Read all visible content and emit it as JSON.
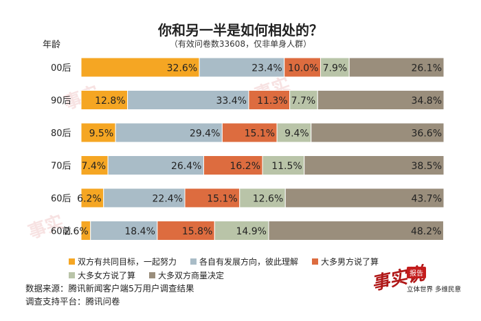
{
  "title": "你和另一半是如何相处的？",
  "subtitle": "（有效问卷数33608，仅非单身人群）",
  "corner_label": "年龄",
  "colors": [
    "#f5a623",
    "#a9bcc7",
    "#dd6c3f",
    "#b9c4a8",
    "#9a8e7c"
  ],
  "legend": {
    "row1": [
      "双方有共同目标，一起努力",
      "各自有发展方向，彼此理解",
      "大多男方说了算"
    ],
    "row2": [
      "大多女方说了算",
      "大多双方商量决定"
    ]
  },
  "source": {
    "line1": "数据来源：腾讯新闻客户端5万用户调查结果",
    "line2": "调查支持平台：腾讯问卷"
  },
  "logo": {
    "mark": "事实说",
    "badge": "报告",
    "tagline": "立体世界 多维民意"
  },
  "chart_data": {
    "type": "bar",
    "orientation": "horizontal",
    "stacked": true,
    "title": "你和另一半是如何相处的？",
    "subtitle": "（有效问卷数33608，仅非单身人群）",
    "categories": [
      "00后",
      "90后",
      "80后",
      "70后",
      "60后",
      "60前"
    ],
    "xlim": [
      0,
      100
    ],
    "grid": false,
    "legend_position": "bottom",
    "series": [
      {
        "name": "双方有共同目标，一起努力",
        "values": [
          32.6,
          12.8,
          9.5,
          7.4,
          6.2,
          2.6
        ]
      },
      {
        "name": "各自有发展方向，彼此理解",
        "values": [
          23.4,
          33.4,
          29.4,
          26.4,
          22.4,
          18.4
        ]
      },
      {
        "name": "大多男方说了算",
        "values": [
          10.0,
          11.3,
          15.1,
          16.2,
          15.1,
          15.8
        ]
      },
      {
        "name": "大多女方说了算",
        "values": [
          7.9,
          7.7,
          9.4,
          11.5,
          12.6,
          14.9
        ]
      },
      {
        "name": "大多双方商量决定",
        "values": [
          26.1,
          34.8,
          36.6,
          38.5,
          43.7,
          48.2
        ]
      }
    ],
    "value_labels": [
      [
        "32.6%",
        "23.4%",
        "10.0%",
        "7.9%",
        "26.1%"
      ],
      [
        "12.8%",
        "33.4%",
        "11.3%",
        "7.7%",
        "34.8%"
      ],
      [
        "9.5%",
        "29.4%",
        "15.1%",
        "9.4%",
        "36.6%"
      ],
      [
        "7.4%",
        "26.4%",
        "16.2%",
        "11.5%",
        "38.5%"
      ],
      [
        "6.2%",
        "22.4%",
        "15.1%",
        "12.6%",
        "43.7%"
      ],
      [
        "2.6%",
        "18.4%",
        "15.8%",
        "14.9%",
        "48.2%"
      ]
    ]
  }
}
